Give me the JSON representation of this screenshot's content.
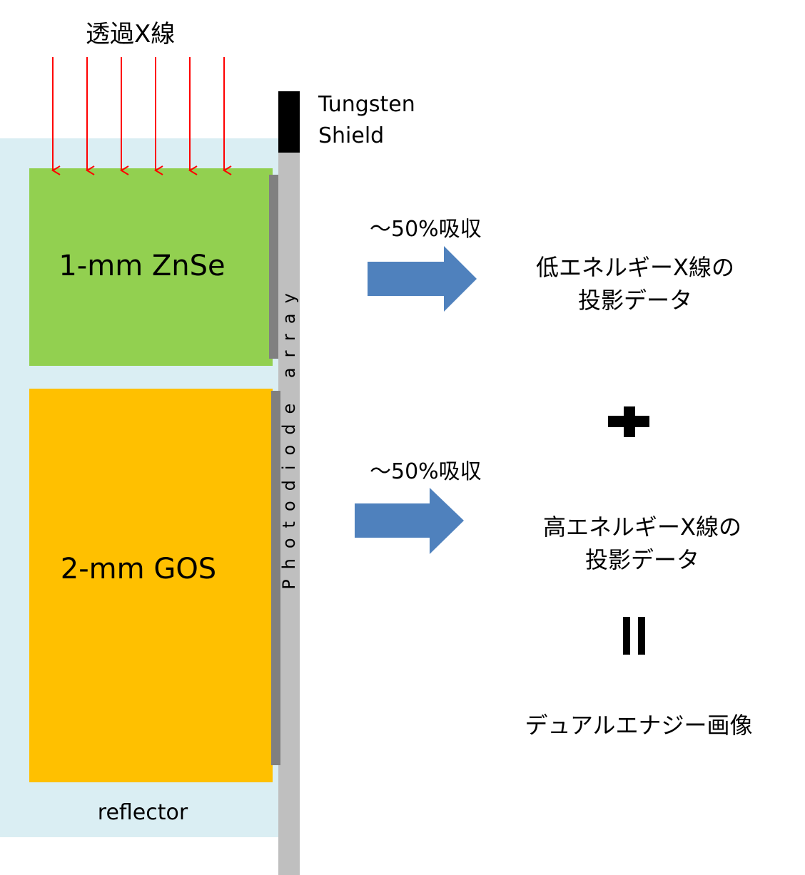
{
  "top_label": "透過X線",
  "tungsten_label": [
    "Tungsten",
    "Shield"
  ],
  "detector": {
    "layer1_label": "1-mm ZnSe",
    "layer2_label": "2-mm GOS",
    "reflector_label": "reflector",
    "photodiode_label": "Photodiode array"
  },
  "flow": {
    "absorption_1": "～50%吸収",
    "absorption_2": "～50%吸収",
    "low_energy_line1": "低エネルギーX線の",
    "low_energy_line2": "投影データ",
    "high_energy_line1": "高エネルギーX線の",
    "high_energy_line2": "投影データ",
    "result": "デュアルエナジー画像"
  },
  "colors": {
    "reflector": "#daeef3",
    "znse": "#92d050",
    "gos": "#ffc000",
    "photodiode": "#bfbfbf",
    "tungsten": "#000000",
    "xray_arrow": "#ff0000",
    "flow_arrow": "#4f81bd"
  }
}
